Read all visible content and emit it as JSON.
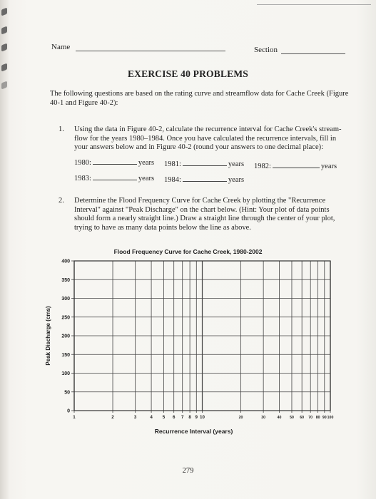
{
  "header": {
    "name_label": "Name",
    "section_label": "Section"
  },
  "title": "EXERCISE 40 PROBLEMS",
  "intro": "The following questions are based on the rating curve and streamflow data for Cache Creek (Figure 40-1 and Figure 40-2):",
  "questions": [
    {
      "number": "1.",
      "text": "Using the data in Figure 40-2, calculate the recurrence interval for Cache Creek's stream-flow for the years 1980–1984. Once you have calculated the recurrence intervals, fill in your answers below and in Figure 40-2 (round your answers to one decimal place):",
      "answers": [
        {
          "year": "1980:",
          "unit": "years"
        },
        {
          "year": "1981:",
          "unit": "years"
        },
        {
          "year": "1982:",
          "unit": "years"
        },
        {
          "year": "1983:",
          "unit": "years"
        },
        {
          "year": "1984:",
          "unit": "years"
        }
      ]
    },
    {
      "number": "2.",
      "text": "Determine the Flood Frequency Curve for Cache Creek by plotting the \"Recurrence Interval\" against \"Peak Discharge\" on the chart below. (Hint: Your plot of data points should form a nearly straight line.) Draw a straight line through the center of your plot, trying to have as many data points below the line as above."
    }
  ],
  "chart_data": {
    "type": "scatter",
    "title": "Flood Frequency Curve for Cache Creek, 1980-2002",
    "xlabel": "Recurrence Interval (years)",
    "ylabel": "Peak Discharge (cms)",
    "x_scale": "log",
    "xlim": [
      1,
      100
    ],
    "ylim": [
      0,
      400
    ],
    "x_ticks": [
      "1",
      "2",
      "3",
      "4",
      "5",
      "6",
      "7",
      "8",
      "9",
      "10",
      "20",
      "30",
      "40",
      "50",
      "60",
      "70",
      "80",
      "90",
      "100"
    ],
    "y_ticks": [
      "0",
      "50",
      "100",
      "150",
      "200",
      "250",
      "300",
      "350",
      "400"
    ],
    "grid": true,
    "series": []
  },
  "page_number": "279"
}
